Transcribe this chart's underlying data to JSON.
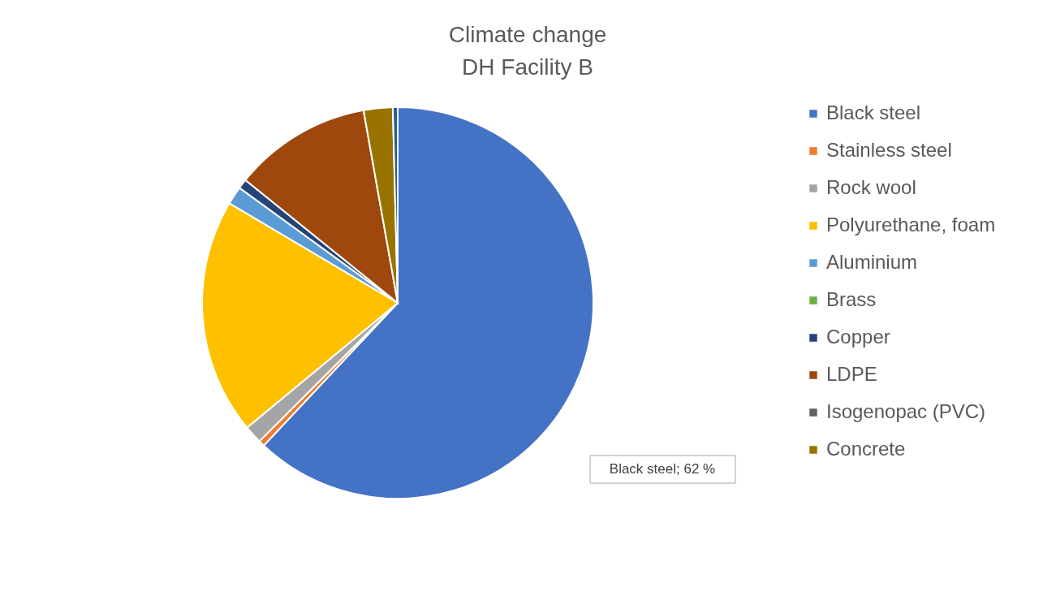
{
  "chart_data": {
    "type": "pie",
    "title": "Climate change\nDH Facility B",
    "categories": [
      "Black steel",
      "Stainless steel",
      "Rock wool",
      "Polyurethane, foam",
      "Aluminium",
      "Brass",
      "Copper",
      "LDPE",
      "Isogenopac (PVC)",
      "Concrete",
      null
    ],
    "values": [
      62,
      0.5,
      1.5,
      19.5,
      1.5,
      null,
      0.8,
      11.4,
      null,
      2.4,
      0.4
    ],
    "colors": [
      "#4472c4",
      "#ed7d31",
      "#a5a5a5",
      "#ffc000",
      "#5b9bd5",
      "#70ad47",
      "#264478",
      "#9e480e",
      "#636363",
      "#997300",
      "#255e91"
    ],
    "annotations": [
      "Black steel; 62 %"
    ],
    "legend": "right"
  }
}
